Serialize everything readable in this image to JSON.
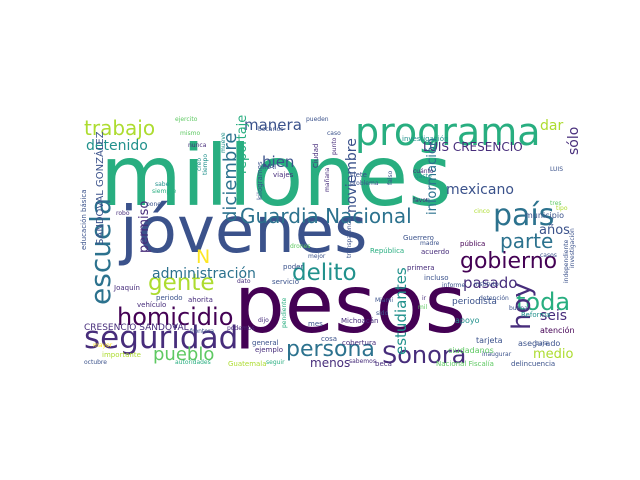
{
  "palette": {
    "dark_purple": "#440154",
    "purple": "#472d7b",
    "indigo": "#3b528b",
    "blue": "#2c728e",
    "teal": "#21918c",
    "green": "#28ae80",
    "light_green": "#5ec962",
    "lime": "#addc30",
    "yellow": "#fde725"
  },
  "words": [
    {
      "id": "millones",
      "text": "millones",
      "color": "#28ae80"
    },
    {
      "id": "pesos",
      "text": "pesos",
      "color": "#440154"
    },
    {
      "id": "jovenes",
      "text": "jóvenes",
      "color": "#3b528b"
    },
    {
      "id": "programa",
      "text": "programa",
      "color": "#28ae80"
    },
    {
      "id": "seguridad",
      "text": "seguridad",
      "color": "#472d7b"
    },
    {
      "id": "guardia-nacional",
      "text": "Guardia Nacional",
      "color": "#2c728e"
    },
    {
      "id": "escuela",
      "text": "escuela",
      "color": "#2c728e"
    },
    {
      "id": "gobierno",
      "text": "gobierno",
      "color": "#440154"
    },
    {
      "id": "pais",
      "text": "país",
      "color": "#2c728e"
    },
    {
      "id": "persona",
      "text": "persona",
      "color": "#2c728e"
    },
    {
      "id": "sonora",
      "text": "Sonora",
      "color": "#472d7b"
    },
    {
      "id": "homicidio",
      "text": "homicidio",
      "color": "#440154"
    },
    {
      "id": "delito",
      "text": "delito",
      "color": "#21918c"
    },
    {
      "id": "gente",
      "text": "gente",
      "color": "#addc30"
    },
    {
      "id": "toda",
      "text": "toda",
      "color": "#28ae80"
    },
    {
      "id": "hoy",
      "text": "hoy",
      "color": "#472d7b"
    },
    {
      "id": "parte",
      "text": "parte",
      "color": "#2c728e"
    },
    {
      "id": "trabajo",
      "text": "trabajo",
      "color": "#addc30"
    },
    {
      "id": "pueblo",
      "text": "pueblo",
      "color": "#5ec962"
    },
    {
      "id": "diciembre",
      "text": "diciembre",
      "color": "#2c728e"
    },
    {
      "id": "manera",
      "text": "manera",
      "color": "#3b528b"
    },
    {
      "id": "administracion",
      "text": "administración",
      "color": "#2c728e"
    },
    {
      "id": "pasado",
      "text": "pasado",
      "color": "#472d7b"
    },
    {
      "id": "estudiantes",
      "text": "estudiantes",
      "color": "#21918c"
    },
    {
      "id": "noviembre",
      "text": "noviembre",
      "color": "#3b528b"
    },
    {
      "id": "mexicano",
      "text": "mexicano",
      "color": "#3b528b"
    },
    {
      "id": "detenido",
      "text": "detenido",
      "color": "#21918c"
    },
    {
      "id": "bien",
      "text": "bien",
      "color": "#3b528b"
    },
    {
      "id": "luis-cresencio",
      "text": "LUIS CRESENCIO",
      "color": "#472d7b"
    },
    {
      "id": "solo",
      "text": "sólo",
      "color": "#472d7b"
    },
    {
      "id": "anos",
      "text": "años",
      "color": "#3b528b"
    },
    {
      "id": "seis",
      "text": "seis",
      "color": "#472d7b"
    },
    {
      "id": "dar",
      "text": "dar",
      "color": "#addc30"
    },
    {
      "id": "permiso",
      "text": "permiso",
      "color": "#472d7b"
    },
    {
      "id": "reportaje",
      "text": "reportaje",
      "color": "#28ae80"
    },
    {
      "id": "informacion",
      "text": "información",
      "color": "#2c728e"
    },
    {
      "id": "medio",
      "text": "medio",
      "color": "#addc30"
    },
    {
      "id": "menos",
      "text": "menos",
      "color": "#472d7b"
    },
    {
      "id": "n",
      "text": "N",
      "color": "#fde725"
    },
    {
      "id": "sandoval-gonzalez",
      "text": "SANDOVAL GONZÁLEZ",
      "color": "#3b528b"
    },
    {
      "id": "cresencio-sandoval",
      "text": "CRESENCIO SANDOVAL",
      "color": "#472d7b"
    },
    {
      "id": "investigacion",
      "text": "investigación",
      "color": "#21918c"
    },
    {
      "id": "periodista",
      "text": "periodista",
      "color": "#3b528b"
    },
    {
      "id": "municipio",
      "text": "municipio",
      "color": "#3b528b"
    },
    {
      "id": "asegurado",
      "text": "asegurado",
      "color": "#3b528b"
    },
    {
      "id": "atencion",
      "text": "atención",
      "color": "#440154"
    },
    {
      "id": "ciudadanos",
      "text": "ciudadanos",
      "color": "#5ec962"
    },
    {
      "id": "tarjeta",
      "text": "tarjeta",
      "color": "#3b528b"
    },
    {
      "id": "apoyo",
      "text": "apoyo",
      "color": "#21918c"
    },
    {
      "id": "reforma",
      "text": "Reforma",
      "color": "#21918c"
    },
    {
      "id": "mes",
      "text": "mes",
      "color": "#3b528b"
    },
    {
      "id": "michoacan",
      "text": "Michoacán",
      "color": "#472d7b"
    },
    {
      "id": "guerrero",
      "text": "Guerrero",
      "color": "#3b528b"
    },
    {
      "id": "republica",
      "text": "República",
      "color": "#28ae80"
    },
    {
      "id": "publica",
      "text": "pública",
      "color": "#440154"
    },
    {
      "id": "acuerdo",
      "text": "acuerdo",
      "color": "#472d7b"
    },
    {
      "id": "primera",
      "text": "primera",
      "color": "#472d7b"
    },
    {
      "id": "kilogramos",
      "text": "kilogramos",
      "color": "#3b528b"
    },
    {
      "id": "viajes",
      "text": "viajes",
      "color": "#472d7b"
    },
    {
      "id": "inai",
      "text": "INAI",
      "color": "#3b528b"
    },
    {
      "id": "ciudad",
      "text": "Ciudad",
      "color": "#472d7b"
    },
    {
      "id": "caso",
      "text": "caso",
      "color": "#3b528b"
    },
    {
      "id": "punto",
      "text": "punto",
      "color": "#472d7b"
    },
    {
      "id": "siete",
      "text": "siete",
      "color": "#3b528b"
    },
    {
      "id": "problema",
      "text": "problema",
      "color": "#3b528b"
    },
    {
      "id": "falso",
      "text": "falso",
      "color": "#3b528b"
    },
    {
      "id": "nacional-fiscalia",
      "text": "Nacional Fiscalía",
      "color": "#5ec962"
    },
    {
      "id": "beca",
      "text": "beca",
      "color": "#472d7b"
    },
    {
      "id": "cobertura",
      "text": "cobertura",
      "color": "#472d7b"
    },
    {
      "id": "cosa",
      "text": "cosa",
      "color": "#3b528b"
    },
    {
      "id": "general",
      "text": "general",
      "color": "#3b528b"
    },
    {
      "id": "ejemplo",
      "text": "ejemplo",
      "color": "#472d7b"
    },
    {
      "id": "importante",
      "text": "importante",
      "color": "#addc30"
    },
    {
      "id": "joaquin",
      "text": "Joaquín",
      "color": "#472d7b"
    },
    {
      "id": "periodo",
      "text": "periodo",
      "color": "#3b528b"
    },
    {
      "id": "vehiculo",
      "text": "vehículo",
      "color": "#472d7b"
    },
    {
      "id": "ahorita",
      "text": "ahorita",
      "color": "#472d7b"
    },
    {
      "id": "poder",
      "text": "poder",
      "color": "#3b528b"
    },
    {
      "id": "servicio",
      "text": "servicio",
      "color": "#3b528b"
    },
    {
      "id": "dato",
      "text": "dato",
      "color": "#472d7b"
    },
    {
      "id": "frontera",
      "text": "frontera",
      "color": "#3b528b"
    },
    {
      "id": "delincuencia",
      "text": "delincuencia",
      "color": "#3b528b"
    },
    {
      "id": "inaugurar",
      "text": "inaugurar",
      "color": "#3b528b"
    },
    {
      "id": "deteccion",
      "text": "detención",
      "color": "#3b528b"
    },
    {
      "id": "buena",
      "text": "buena",
      "color": "#3b528b"
    },
    {
      "id": "baja",
      "text": "baja",
      "color": "#3b528b"
    },
    {
      "id": "instituto",
      "text": "instituto",
      "color": "#3b528b"
    },
    {
      "id": "informe",
      "text": "informe",
      "color": "#3b528b"
    },
    {
      "id": "incluso",
      "text": "incluso",
      "color": "#3b528b"
    },
    {
      "id": "madre",
      "text": "madre",
      "color": "#3b528b"
    },
    {
      "id": "casos",
      "text": "casos",
      "color": "#3b528b"
    },
    {
      "id": "cinco",
      "text": "cinco",
      "color": "#addc30"
    },
    {
      "id": "favor",
      "text": "favor",
      "color": "#472d7b"
    },
    {
      "id": "cuanto",
      "text": "cuánto",
      "color": "#472d7b"
    },
    {
      "id": "gasto",
      "text": "gasto",
      "color": "#21918c"
    },
    {
      "id": "luis",
      "text": "LUIS",
      "color": "#3b528b"
    },
    {
      "id": "mejor",
      "text": "mejor",
      "color": "#3b528b"
    },
    {
      "id": "podemos",
      "text": "podemos",
      "color": "#472d7b"
    },
    {
      "id": "educacion-basica",
      "text": "educación básica",
      "color": "#3b528b"
    },
    {
      "id": "robo",
      "text": "robo",
      "color": "#472d7b"
    },
    {
      "id": "nunca",
      "text": "nunca",
      "color": "#472d7b"
    },
    {
      "id": "creo",
      "text": "creo",
      "color": "#21918c"
    },
    {
      "id": "tiempo",
      "text": "tiempo",
      "color": "#21918c"
    },
    {
      "id": "siempre",
      "text": "siempre",
      "color": "#28ae80"
    },
    {
      "id": "sabe",
      "text": "sabe",
      "color": "#21918c"
    },
    {
      "id": "octubre",
      "text": "octubre",
      "color": "#3b528b"
    },
    {
      "id": "mayor",
      "text": "mayor",
      "color": "#fde725"
    },
    {
      "id": "guatemala",
      "text": "Guatemala",
      "color": "#addc30"
    },
    {
      "id": "autoridades",
      "text": "autoridades",
      "color": "#28ae80"
    },
    {
      "id": "seguir",
      "text": "seguir",
      "color": "#28ae80"
    },
    {
      "id": "sabemos",
      "text": "sabemos",
      "color": "#472d7b"
    },
    {
      "id": "miami",
      "text": "Miami",
      "color": "#3b528b"
    },
    {
      "id": "dijo",
      "text": "dijo",
      "color": "#472d7b"
    },
    {
      "id": "pendiente",
      "text": "pendiente",
      "color": "#28ae80"
    },
    {
      "id": "ir",
      "text": "ir",
      "color": "#472d7b"
    },
    {
      "id": "sido",
      "text": "sido",
      "color": "#3b528b"
    },
    {
      "id": "drones",
      "text": "drones",
      "color": "#5ec962"
    },
    {
      "id": "independiente",
      "text": "independiente",
      "color": "#3b528b"
    },
    {
      "id": "investigacion-2",
      "text": "investigación",
      "color": "#3b528b"
    },
    {
      "id": "transparencia",
      "text": "transparencia",
      "color": "#3b528b"
    },
    {
      "id": "manana",
      "text": "mañana",
      "color": "#472d7b"
    },
    {
      "id": "becarios",
      "text": "becarios",
      "color": "#3b528b"
    },
    {
      "id": "pueden",
      "text": "pueden",
      "color": "#3b528b"
    },
    {
      "id": "mueve",
      "text": "mueve",
      "color": "#21918c"
    },
    {
      "id": "ejercito",
      "text": "ejercito",
      "color": "#5ec962"
    },
    {
      "id": "mismo",
      "text": "mismo",
      "color": "#5ec962"
    },
    {
      "id": "poner",
      "text": "poner",
      "color": "#3b528b"
    },
    {
      "id": "mil",
      "text": "mil",
      "color": "#5ec962"
    },
    {
      "id": "tres",
      "text": "tres",
      "color": "#5ec962"
    },
    {
      "id": "tipo",
      "text": "tipo",
      "color": "#addc30"
    }
  ]
}
